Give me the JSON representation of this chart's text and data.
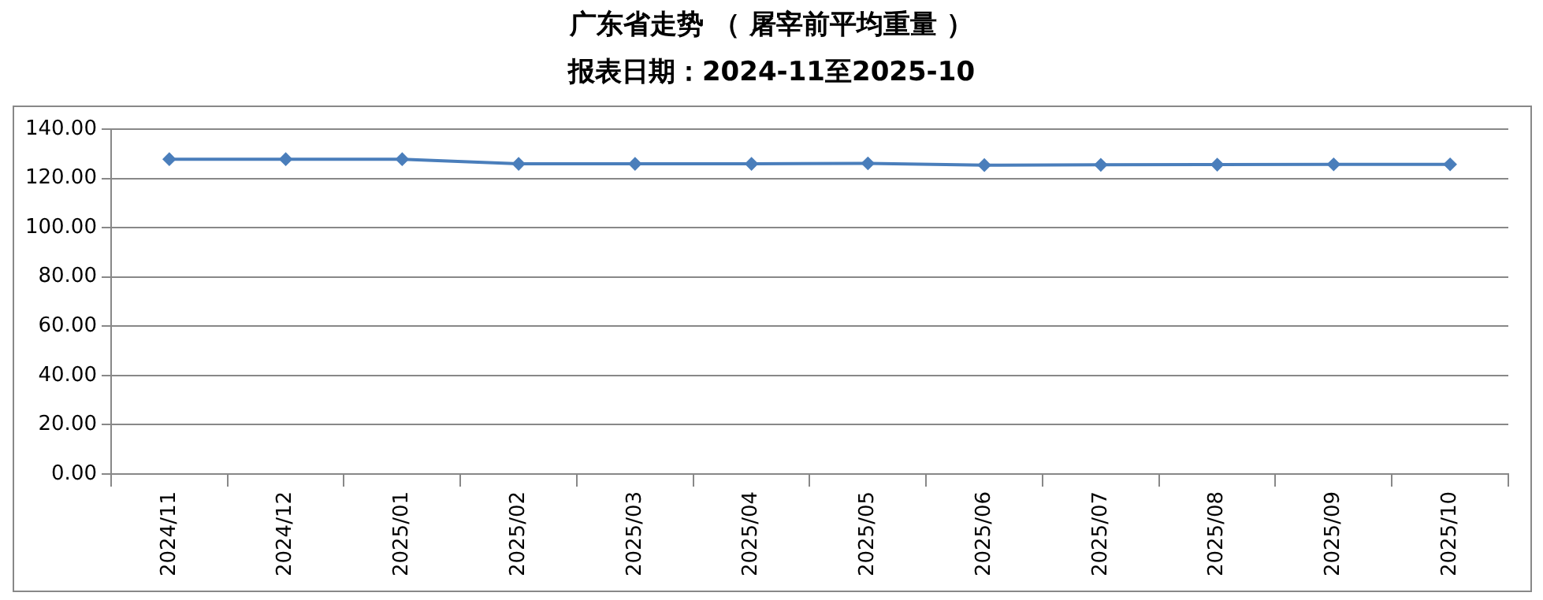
{
  "chart_data": {
    "type": "line",
    "title": "广东省走势 （ 屠宰前平均重量 ）",
    "subtitle": "报表日期：2024-11至2025-10",
    "categories": [
      "2024/11",
      "2024/12",
      "2025/01",
      "2025/02",
      "2025/03",
      "2025/04",
      "2025/05",
      "2025/06",
      "2025/07",
      "2025/08",
      "2025/09",
      "2025/10"
    ],
    "series": [
      {
        "color": "#4a7ebb",
        "values": [
          127.8,
          127.8,
          127.8,
          125.9,
          125.9,
          125.9,
          126.1,
          125.4,
          125.5,
          125.6,
          125.7,
          125.7
        ]
      }
    ],
    "ylim": [
      0,
      140
    ],
    "yticks": [
      {
        "value": 0,
        "label": "0.00"
      },
      {
        "value": 20,
        "label": "20.00"
      },
      {
        "value": 40,
        "label": "40.00"
      },
      {
        "value": 60,
        "label": "60.00"
      },
      {
        "value": 80,
        "label": "80.00"
      },
      {
        "value": 100,
        "label": "100.00"
      },
      {
        "value": 120,
        "label": "120.00"
      },
      {
        "value": 140,
        "label": "140.00"
      }
    ],
    "grid": "y",
    "legend": false,
    "marker": "diamond",
    "line_style": "solid"
  }
}
